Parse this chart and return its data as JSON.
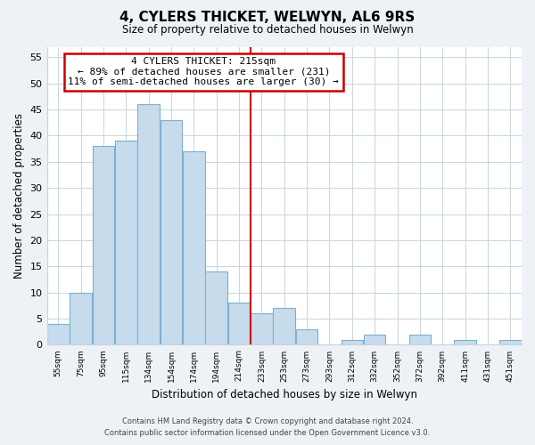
{
  "title": "4, CYLERS THICKET, WELWYN, AL6 9RS",
  "subtitle": "Size of property relative to detached houses in Welwyn",
  "xlabel": "Distribution of detached houses by size in Welwyn",
  "ylabel": "Number of detached properties",
  "bin_labels": [
    "55sqm",
    "75sqm",
    "95sqm",
    "115sqm",
    "134sqm",
    "154sqm",
    "174sqm",
    "194sqm",
    "214sqm",
    "233sqm",
    "253sqm",
    "273sqm",
    "293sqm",
    "312sqm",
    "332sqm",
    "352sqm",
    "372sqm",
    "392sqm",
    "411sqm",
    "431sqm",
    "451sqm"
  ],
  "bar_values": [
    4,
    10,
    38,
    39,
    46,
    43,
    37,
    14,
    8,
    6,
    7,
    3,
    0,
    1,
    2,
    0,
    2,
    0,
    1,
    0,
    1
  ],
  "bar_color": "#c6dcec",
  "bar_edge_color": "#7bafd4",
  "vline_x_index": 8.5,
  "vline_color": "#cc0000",
  "annotation_title": "4 CYLERS THICKET: 215sqm",
  "annotation_line1": "← 89% of detached houses are smaller (231)",
  "annotation_line2": "11% of semi-detached houses are larger (30) →",
  "annotation_box_color": "#ffffff",
  "annotation_box_edge": "#cc0000",
  "ylim": [
    0,
    57
  ],
  "yticks": [
    0,
    5,
    10,
    15,
    20,
    25,
    30,
    35,
    40,
    45,
    50,
    55
  ],
  "footer_line1": "Contains HM Land Registry data © Crown copyright and database right 2024.",
  "footer_line2": "Contains public sector information licensed under the Open Government Licence v3.0.",
  "bg_color": "#eef2f7",
  "plot_bg_color": "#ffffff",
  "grid_color": "#c8d4e0"
}
